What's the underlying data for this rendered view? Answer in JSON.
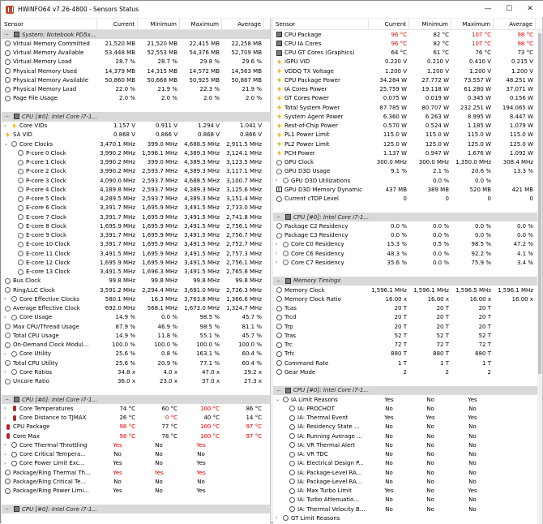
{
  "window": {
    "title": "HWiNFO64 v7.26-4800 - Sensors Status",
    "min": "—",
    "max": "☐",
    "close": "✕"
  },
  "headers": {
    "sensor": "Sensor",
    "current": "Current",
    "minimum": "Minimum",
    "maximum": "Maximum",
    "average": "Average"
  },
  "left": [
    {
      "t": "g",
      "n": "System: Notebook PD5x...",
      "e": "−"
    },
    {
      "i": "circ",
      "n": "Virtual Memory Committed",
      "v": [
        "21,520 MB",
        "21,520 MB",
        "22,415 MB",
        "22,258 MB"
      ]
    },
    {
      "i": "circ",
      "n": "Virtual Memory Available",
      "v": [
        "53,448 MB",
        "52,553 MB",
        "54,376 MB",
        "52,709 MB"
      ]
    },
    {
      "i": "circ",
      "n": "Virtual Memory Load",
      "v": [
        "28.7 %",
        "28.7 %",
        "29.8 %",
        "29.6 %"
      ]
    },
    {
      "i": "circ",
      "n": "Physical Memory Used",
      "v": [
        "14,379 MB",
        "14,315 MB",
        "14,572 MB",
        "14,563 MB"
      ]
    },
    {
      "i": "circ",
      "n": "Physical Memory Available",
      "v": [
        "50,860 MB",
        "50,668 MB",
        "50,925 MB",
        "50,887 MB"
      ]
    },
    {
      "i": "circ",
      "n": "Physical Memory Load",
      "v": [
        "22.0 %",
        "21.9 %",
        "22.3 %",
        "21.9 %"
      ]
    },
    {
      "i": "circ",
      "n": "Page File Usage",
      "v": [
        "2.0 %",
        "2.0 %",
        "2.0 %",
        "2.0 %"
      ]
    },
    {
      "t": "b"
    },
    {
      "t": "g",
      "n": "CPU [#0]: Intel Core i7-1...",
      "e": "−"
    },
    {
      "i": "bolt",
      "a": "›",
      "d": 1,
      "n": "Core VIDs",
      "v": [
        "1.157 V",
        "0.911 V",
        "1.294 V",
        "1.041 V"
      ]
    },
    {
      "i": "bolt",
      "n": "SA VID",
      "v": [
        "0.868 V",
        "0.866 V",
        "0.868 V",
        "0.866 V"
      ]
    },
    {
      "i": "freq",
      "a": "⌄",
      "d": 1,
      "n": "Core Clocks",
      "v": [
        "3,470.1 MHz",
        "399.0 MHz",
        "4,688.5 MHz",
        "2,911.5 MHz"
      ]
    },
    {
      "i": "freq",
      "d": 2,
      "n": "P-core 0 Clock",
      "v": [
        "3,990.2 MHz",
        "1,596.1 MHz",
        "4,389.3 MHz",
        "3,124.1 MHz"
      ]
    },
    {
      "i": "freq",
      "d": 2,
      "n": "P-core 1 Clock",
      "v": [
        "3,990.2 MHz",
        "399.0 MHz",
        "4,389.3 MHz",
        "3,123.5 MHz"
      ]
    },
    {
      "i": "freq",
      "d": 2,
      "n": "P-core 2 Clock",
      "v": [
        "3,990.2 MHz",
        "2,593.7 MHz",
        "4,389.3 MHz",
        "3,117.1 MHz"
      ]
    },
    {
      "i": "freq",
      "d": 2,
      "n": "P-core 3 Clock",
      "v": [
        "4,090.0 MHz",
        "2,593.7 MHz",
        "4,688.5 MHz",
        "3,100.7 MHz"
      ]
    },
    {
      "i": "freq",
      "d": 2,
      "n": "P-core 4 Clock",
      "v": [
        "4,189.8 MHz",
        "2,593.7 MHz",
        "4,389.3 MHz",
        "3,125.6 MHz"
      ]
    },
    {
      "i": "freq",
      "d": 2,
      "n": "P-core 5 Clock",
      "v": [
        "4,289.5 MHz",
        "2,593.7 MHz",
        "4,389.3 MHz",
        "3,151.4 MHz"
      ]
    },
    {
      "i": "freq",
      "d": 2,
      "n": "E-core 6 Clock",
      "v": [
        "3,391.7 MHz",
        "1,695.9 MHz",
        "3,491.5 MHz",
        "2,733.0 MHz"
      ]
    },
    {
      "i": "freq",
      "d": 2,
      "n": "E-core 7 Clock",
      "v": [
        "3,391.7 MHz",
        "1,695.9 MHz",
        "3,491.5 MHz",
        "2,741.8 MHz"
      ]
    },
    {
      "i": "freq",
      "d": 2,
      "n": "E-core 8 Clock",
      "v": [
        "1,695.9 MHz",
        "1,695.9 MHz",
        "3,491.5 MHz",
        "2,756.1 MHz"
      ]
    },
    {
      "i": "freq",
      "d": 2,
      "n": "E-core 9 Clock",
      "v": [
        "3,391.7 MHz",
        "1,695.9 MHz",
        "3,491.5 MHz",
        "2,756.7 MHz"
      ]
    },
    {
      "i": "freq",
      "d": 2,
      "n": "E-core 10 Clock",
      "v": [
        "3,391.7 MHz",
        "1,695.9 MHz",
        "3,491.5 MHz",
        "2,752.7 MHz"
      ]
    },
    {
      "i": "freq",
      "d": 2,
      "n": "E-core 11 Clock",
      "v": [
        "3,491.5 MHz",
        "1,695.9 MHz",
        "3,491.5 MHz",
        "2,757.3 MHz"
      ]
    },
    {
      "i": "freq",
      "d": 2,
      "n": "E-core 12 Clock",
      "v": [
        "1,695.9 MHz",
        "1,695.9 MHz",
        "3,491.5 MHz",
        "2,756.1 MHz"
      ]
    },
    {
      "i": "freq",
      "d": 2,
      "n": "E-core 13 Clock",
      "v": [
        "3,491.5 MHz",
        "1,696.3 MHz",
        "3,491.5 MHz",
        "2,765.8 MHz"
      ]
    },
    {
      "i": "freq",
      "n": "Bus Clock",
      "v": [
        "99.8 MHz",
        "99.8 MHz",
        "99.8 MHz",
        "99.8 MHz"
      ]
    },
    {
      "i": "freq",
      "n": "Ring/LLC Clock",
      "v": [
        "3,591.2 MHz",
        "2,294.4 MHz",
        "3,691.0 MHz",
        "2,726.3 MHz"
      ]
    },
    {
      "i": "freq",
      "a": "›",
      "d": 1,
      "n": "Core Effective Clocks",
      "v": [
        "580.1 MHz",
        "16.3 MHz",
        "3,763.8 MHz",
        "1,366.6 MHz"
      ]
    },
    {
      "i": "freq",
      "n": "Average Effective Clock",
      "v": [
        "692.0 MHz",
        "568.1 MHz",
        "1,673.0 MHz",
        "1,324.7 MHz"
      ]
    },
    {
      "i": "pct",
      "a": "›",
      "d": 1,
      "n": "Core Usage",
      "v": [
        "14.9 %",
        "0.0 %",
        "98.5 %",
        "45.7 %"
      ]
    },
    {
      "i": "pct",
      "n": "Max CPU/Thread Usage",
      "v": [
        "87.9 %",
        "46.9 %",
        "98.5 %",
        "81.1 %"
      ]
    },
    {
      "i": "pct",
      "n": "Total CPU Usage",
      "v": [
        "14.9 %",
        "11.8 %",
        "55.1 %",
        "45.7 %"
      ]
    },
    {
      "i": "pct",
      "n": "On-Demand Clock Modul...",
      "v": [
        "100.0 %",
        "100.0 %",
        "100.0 %",
        "100.0 %"
      ]
    },
    {
      "i": "pct",
      "a": "›",
      "d": 1,
      "n": "Core Utility",
      "v": [
        "25.6 %",
        "0.8 %",
        "163.1 %",
        "60.4 %"
      ]
    },
    {
      "i": "pct",
      "n": "Total CPU Utility",
      "v": [
        "25.6 %",
        "20.9 %",
        "77.1 %",
        "60.4 %"
      ]
    },
    {
      "i": "pct",
      "a": "›",
      "d": 1,
      "n": "Core Ratios",
      "v": [
        "34.8 x",
        "4.0 x",
        "47.0 x",
        "29.2 x"
      ]
    },
    {
      "i": "pct",
      "n": "Uncore Ratio",
      "v": [
        "36.0 x",
        "23.0 x",
        "37.0 x",
        "27.3 x"
      ]
    },
    {
      "t": "b"
    },
    {
      "t": "g",
      "n": "CPU [#0]: Intel Core i7-1...",
      "e": "−"
    },
    {
      "i": "therm",
      "a": "›",
      "d": 1,
      "n": "Core Temperatures",
      "v": [
        "74 °C",
        "60 °C",
        "100 °C",
        "86 °C"
      ],
      "r": [
        0,
        0,
        1,
        0
      ]
    },
    {
      "i": "therm",
      "a": "›",
      "d": 1,
      "n": "Core Distance to TJMAX",
      "v": [
        "26 °C",
        "0 °C",
        "40 °C",
        "14 °C"
      ],
      "r": [
        0,
        1,
        0,
        0
      ]
    },
    {
      "i": "therm",
      "n": "CPU Package",
      "v": [
        "98 °C",
        "77 °C",
        "100 °C",
        "97 °C"
      ],
      "r": [
        1,
        0,
        1,
        1
      ]
    },
    {
      "i": "therm",
      "n": "Core Max",
      "v": [
        "98 °C",
        "78 °C",
        "100 °C",
        "97 °C"
      ],
      "r": [
        1,
        0,
        1,
        1
      ]
    },
    {
      "i": "circ",
      "a": "›",
      "d": 1,
      "n": "Core Thermal Throttling",
      "v": [
        "Yes",
        "No",
        "Yes",
        ""
      ],
      "r": [
        1,
        0,
        1,
        0
      ],
      "c": 1
    },
    {
      "i": "circ",
      "a": "›",
      "d": 1,
      "n": "Core Critical Tempera...",
      "v": [
        "No",
        "No",
        "No",
        ""
      ],
      "c": 1
    },
    {
      "i": "circ",
      "a": "›",
      "d": 1,
      "n": "Core Power Limit Exc...",
      "v": [
        "Yes",
        "No",
        "Yes",
        ""
      ],
      "c": 1
    },
    {
      "i": "circ",
      "n": "Package/Ring Thermal Th...",
      "v": [
        "Yes",
        "Yes",
        "Yes",
        ""
      ],
      "r": [
        1,
        1,
        1,
        0
      ],
      "c": 1
    },
    {
      "i": "circ",
      "n": "Package/Ring Critical Te...",
      "v": [
        "No",
        "No",
        "No",
        ""
      ],
      "c": 1
    },
    {
      "i": "circ",
      "n": "Package/Ring Power Limi...",
      "v": [
        "Yes",
        "No",
        "Yes",
        ""
      ],
      "c": 1
    },
    {
      "t": "b"
    },
    {
      "t": "g",
      "n": "CPU [#0]: Intel Core i7-1...",
      "e": "−"
    }
  ],
  "right": [
    {
      "i": "chip",
      "n": "CPU Package",
      "v": [
        "96 °C",
        "82 °C",
        "107 °C",
        "98 °C"
      ],
      "r": [
        1,
        0,
        1,
        1
      ]
    },
    {
      "i": "chip",
      "n": "CPU IA Cores",
      "v": [
        "96 °C",
        "82 °C",
        "107 °C",
        "98 °C"
      ],
      "r": [
        1,
        0,
        1,
        1
      ]
    },
    {
      "i": "chip",
      "n": "CPU GT Cores (Graphics)",
      "v": [
        "64 °C",
        "61 °C",
        "76 °C",
        "73 °C"
      ]
    },
    {
      "i": "bolt",
      "n": "iGPU VID",
      "v": [
        "0.220 V",
        "0.210 V",
        "0.410 V",
        "0.215 V"
      ]
    },
    {
      "i": "bolt",
      "n": "VDDQ TX Voltage",
      "v": [
        "1.200 V",
        "1.200 V",
        "1.200 V",
        "1.200 V"
      ]
    },
    {
      "i": "bolt",
      "n": "CPU Package Power",
      "v": [
        "34.284 W",
        "27.772 W",
        "73.557 W",
        "48.251 W"
      ]
    },
    {
      "i": "bolt",
      "n": "IA Cores Power",
      "v": [
        "25.759 W",
        "19.118 W",
        "61.280 W",
        "37.071 W"
      ]
    },
    {
      "i": "bolt",
      "n": "GT Cores Power",
      "v": [
        "0.075 W",
        "0.019 W",
        "0.345 W",
        "0.156 W"
      ]
    },
    {
      "i": "bolt",
      "n": "Total System Power",
      "v": [
        "87.785 W",
        "80.707 W",
        "232.251 W",
        "194.065 W"
      ]
    },
    {
      "i": "bolt",
      "n": "System Agent Power",
      "v": [
        "6.360 W",
        "6.263 W",
        "8.995 W",
        "8.447 W"
      ]
    },
    {
      "i": "bolt",
      "n": "Rest-of-Chip Power",
      "v": [
        "0.570 W",
        "0.524 W",
        "1.185 W",
        "1.079 W"
      ]
    },
    {
      "i": "bolt",
      "n": "PL1 Power Limit",
      "v": [
        "115.0 W",
        "115.0 W",
        "115.0 W",
        "115.0 W"
      ]
    },
    {
      "i": "bolt",
      "n": "PL2 Power Limit",
      "v": [
        "125.0 W",
        "125.0 W",
        "125.0 W",
        "125.0 W"
      ]
    },
    {
      "i": "bolt",
      "n": "PCH Power",
      "v": [
        "1.137 W",
        "0.947 W",
        "1.676 W",
        "1.092 W"
      ]
    },
    {
      "i": "freq",
      "n": "GPU Clock",
      "v": [
        "300.0 MHz",
        "300.0 MHz",
        "1,350.0 MHz",
        "308.4 MHz"
      ]
    },
    {
      "i": "pct",
      "n": "GPU D3D Usage",
      "v": [
        "9.1 %",
        "2.1 %",
        "20.6 %",
        "13.3 %"
      ]
    },
    {
      "i": "pct",
      "a": "›",
      "d": 1,
      "n": "GPU D3D Utilizations",
      "v": [
        "",
        "0.0 %",
        "0.0 %",
        ""
      ]
    },
    {
      "i": "bar",
      "n": "GPU D3D Memory Dynamic",
      "v": [
        "437 MB",
        "389 MB",
        "520 MB",
        "421 MB"
      ]
    },
    {
      "i": "circ",
      "n": "Current cTDP Level",
      "v": [
        "0",
        "0",
        "0",
        "0"
      ]
    },
    {
      "t": "b"
    },
    {
      "t": "g",
      "n": "CPU [#0]: Intel Core i7-1...",
      "e": "−"
    },
    {
      "i": "pct",
      "n": "Package C2 Residency",
      "v": [
        "0.0 %",
        "0.0 %",
        "0.0 %",
        "0.0 %"
      ]
    },
    {
      "i": "pct",
      "n": "Package C3 Residency",
      "v": [
        "0.0 %",
        "0.0 %",
        "0.0 %",
        "0.0 %"
      ]
    },
    {
      "i": "pct",
      "a": "›",
      "d": 1,
      "n": "Core C0 Residency",
      "v": [
        "15.3 %",
        "0.5 %",
        "98.5 %",
        "47.2 %"
      ]
    },
    {
      "i": "pct",
      "a": "›",
      "d": 1,
      "n": "Core C6 Residency",
      "v": [
        "48.3 %",
        "0.0 %",
        "92.2 %",
        "4.1 %"
      ]
    },
    {
      "i": "pct",
      "a": "›",
      "d": 1,
      "n": "Core C7 Residency",
      "v": [
        "35.6 %",
        "0.0 %",
        "75.9 %",
        "3.4 %"
      ]
    },
    {
      "t": "b"
    },
    {
      "t": "g",
      "n": "Memory Timings",
      "e": "−"
    },
    {
      "i": "freq",
      "n": "Memory Clock",
      "v": [
        "1,596.1 MHz",
        "1,596.1 MHz",
        "1,596.5 MHz",
        "1,596.1 MHz"
      ]
    },
    {
      "i": "freq",
      "n": "Memory Clock Ratio",
      "v": [
        "16.00 x",
        "16.00 x",
        "16.00 x",
        "16.00 x"
      ]
    },
    {
      "i": "circ",
      "n": "Tcas",
      "v": [
        "20 T",
        "20 T",
        "20 T",
        ""
      ]
    },
    {
      "i": "circ",
      "n": "Trcd",
      "v": [
        "20 T",
        "20 T",
        "20 T",
        ""
      ]
    },
    {
      "i": "circ",
      "n": "Trp",
      "v": [
        "20 T",
        "20 T",
        "20 T",
        ""
      ]
    },
    {
      "i": "circ",
      "n": "Tras",
      "v": [
        "52 T",
        "52 T",
        "52 T",
        ""
      ]
    },
    {
      "i": "circ",
      "n": "Trc",
      "v": [
        "72 T",
        "72 T",
        "72 T",
        ""
      ]
    },
    {
      "i": "circ",
      "n": "Trfc",
      "v": [
        "880 T",
        "880 T",
        "880 T",
        ""
      ]
    },
    {
      "i": "circ",
      "n": "Command Rate",
      "v": [
        "1 T",
        "1 T",
        "1 T",
        ""
      ]
    },
    {
      "i": "circ",
      "n": "Gear Mode",
      "v": [
        "2",
        "2",
        "2",
        ""
      ]
    },
    {
      "t": "b"
    },
    {
      "t": "g",
      "n": "CPU [#0]: Intel Core i7-1...",
      "e": "−"
    },
    {
      "i": "circ",
      "a": "⌄",
      "d": 1,
      "n": "IA Limit Reasons",
      "v": [
        "Yes",
        "No",
        "Yes",
        ""
      ],
      "c": 1
    },
    {
      "i": "circ",
      "d": 2,
      "n": "IA: PROCHOT",
      "v": [
        "No",
        "No",
        "No",
        ""
      ],
      "c": 1
    },
    {
      "i": "circ",
      "d": 2,
      "n": "IA: Thermal Event",
      "v": [
        "Yes",
        "Yes",
        "Yes",
        ""
      ],
      "c": 1
    },
    {
      "i": "circ",
      "d": 2,
      "n": "IA: Residency State ...",
      "v": [
        "No",
        "No",
        "No",
        ""
      ],
      "c": 1
    },
    {
      "i": "circ",
      "d": 2,
      "n": "IA: Running Average ...",
      "v": [
        "No",
        "No",
        "No",
        ""
      ],
      "c": 1
    },
    {
      "i": "circ",
      "d": 2,
      "n": "IA: VR Thermal Alert",
      "v": [
        "No",
        "No",
        "No",
        ""
      ],
      "c": 1
    },
    {
      "i": "circ",
      "d": 2,
      "n": "IA: VR TDC",
      "v": [
        "No",
        "No",
        "No",
        ""
      ],
      "c": 1
    },
    {
      "i": "circ",
      "d": 2,
      "n": "IA: Electrical Design P...",
      "v": [
        "No",
        "No",
        "No",
        ""
      ],
      "c": 1
    },
    {
      "i": "circ",
      "d": 2,
      "n": "IA: Package-Level RA...",
      "v": [
        "No",
        "No",
        "No",
        ""
      ],
      "c": 1
    },
    {
      "i": "circ",
      "d": 2,
      "n": "IA: Package-Level RA...",
      "v": [
        "No",
        "No",
        "No",
        ""
      ],
      "c": 1
    },
    {
      "i": "circ",
      "d": 2,
      "n": "IA: Max Turbo Limit",
      "v": [
        "Yes",
        "No",
        "Yes",
        ""
      ],
      "c": 1
    },
    {
      "i": "circ",
      "d": 2,
      "n": "IA: Turbo Attenuatio...",
      "v": [
        "No",
        "No",
        "No",
        ""
      ],
      "c": 1
    },
    {
      "i": "circ",
      "d": 2,
      "n": "IA: Thermal Velocity B...",
      "v": [
        "No",
        "No",
        "No",
        ""
      ],
      "c": 1
    },
    {
      "i": "circ",
      "a": "›",
      "d": 1,
      "n": "GT Limit Reasons",
      "v": [
        "",
        "",
        "",
        ""
      ],
      "c": 1
    }
  ]
}
